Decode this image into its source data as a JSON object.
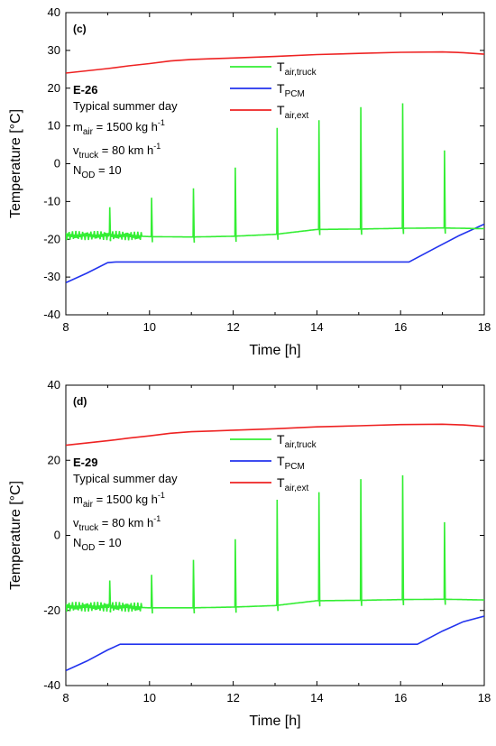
{
  "chart_data": [
    {
      "type": "line",
      "panel_label": "(c)",
      "case_id": "E-26",
      "info": {
        "day": "Typical summer day",
        "m_air_sym": "m",
        "m_air_sub": "air",
        "m_air_val": " = 1500 kg h",
        "m_air_exp": "-1",
        "v_truck_sym": "v",
        "v_truck_sub": "truck",
        "v_truck_val": " = 80 km h",
        "v_truck_exp": "-1",
        "n_od_sym": "N",
        "n_od_sub": "OD",
        "n_od_val": " = 10"
      },
      "xlabel": "Time [h]",
      "ylabel": "Temperature [°C]",
      "xlim": [
        8,
        18
      ],
      "ylim": [
        -40,
        40
      ],
      "xticks": [
        "8",
        "10",
        "12",
        "14",
        "16",
        "18"
      ],
      "yticks": [
        "-40",
        "-30",
        "-20",
        "-10",
        "0",
        "10",
        "20",
        "30",
        "40"
      ],
      "legend": [
        {
          "sym": "T",
          "sub": "air,truck",
          "color": "#33ee33"
        },
        {
          "sym": "T",
          "sub": "PCM",
          "color": "#2233ee"
        },
        {
          "sym": "T",
          "sub": "air,ext",
          "color": "#ee2222"
        }
      ],
      "series": [
        {
          "color": "#ee2222",
          "x": [
            8,
            8.5,
            9,
            9.5,
            10,
            10.5,
            11,
            11.5,
            12,
            13,
            14,
            15,
            16,
            17,
            17.5,
            18
          ],
          "y": [
            24,
            24.6,
            25.2,
            25.9,
            26.5,
            27.2,
            27.6,
            27.8,
            28,
            28.4,
            28.9,
            29.2,
            29.5,
            29.6,
            29.4,
            29
          ]
        },
        {
          "color": "#2233ee",
          "x": [
            8,
            8.5,
            9,
            9.2,
            16.2,
            16.8,
            17.4,
            18
          ],
          "y": [
            -31.5,
            -29,
            -26.2,
            -26,
            -26,
            -22.5,
            -19,
            -16
          ]
        },
        {
          "color": "#33ee33",
          "baseline_x": [
            8,
            9.3,
            10,
            11,
            12,
            13,
            14,
            15,
            16,
            17,
            18
          ],
          "baseline_y": [
            -19,
            -19,
            -19.3,
            -19.4,
            -19.2,
            -18.7,
            -17.4,
            -17.3,
            -17.1,
            -17,
            -17.2
          ],
          "noise_until": 9.8,
          "noise_amp": 1.2,
          "peaks_x": [
            9.05,
            10.05,
            11.05,
            12.05,
            13.05,
            14.05,
            15.05,
            16.05,
            17.05
          ],
          "peaks_y": [
            -11.5,
            -9,
            -6.5,
            -1,
            9.5,
            11.5,
            15,
            16,
            3.5
          ]
        }
      ]
    },
    {
      "type": "line",
      "panel_label": "(d)",
      "case_id": "E-29",
      "info": {
        "day": "Typical summer day",
        "m_air_sym": "m",
        "m_air_sub": "air",
        "m_air_val": " = 1500 kg h",
        "m_air_exp": "-1",
        "v_truck_sym": "v",
        "v_truck_sub": "truck",
        "v_truck_val": " = 80 km h",
        "v_truck_exp": "-1",
        "n_od_sym": "N",
        "n_od_sub": "OD",
        "n_od_val": " = 10"
      },
      "xlabel": "Time [h]",
      "ylabel": "Temperature [°C]",
      "xlim": [
        8,
        18
      ],
      "ylim": [
        -40,
        40
      ],
      "xticks": [
        "8",
        "10",
        "12",
        "14",
        "16",
        "18"
      ],
      "yticks": [
        "-40",
        "-20",
        "0",
        "20",
        "40"
      ],
      "legend": [
        {
          "sym": "T",
          "sub": "air,truck",
          "color": "#33ee33"
        },
        {
          "sym": "T",
          "sub": "PCM",
          "color": "#2233ee"
        },
        {
          "sym": "T",
          "sub": "air,ext",
          "color": "#ee2222"
        }
      ],
      "series": [
        {
          "color": "#ee2222",
          "x": [
            8,
            8.5,
            9,
            9.5,
            10,
            10.5,
            11,
            11.5,
            12,
            13,
            14,
            15,
            16,
            17,
            17.5,
            18
          ],
          "y": [
            24,
            24.6,
            25.2,
            25.9,
            26.5,
            27.2,
            27.6,
            27.8,
            28,
            28.4,
            28.9,
            29.2,
            29.5,
            29.6,
            29.4,
            29
          ]
        },
        {
          "color": "#2233ee",
          "x": [
            8,
            8.5,
            9,
            9.3,
            16.4,
            17,
            17.5,
            18
          ],
          "y": [
            -36,
            -33.5,
            -30.5,
            -29,
            -29,
            -25.5,
            -23,
            -21.5
          ]
        },
        {
          "color": "#33ee33",
          "baseline_x": [
            8,
            9.3,
            10,
            11,
            12,
            13,
            14,
            15,
            16,
            17,
            18
          ],
          "baseline_y": [
            -19,
            -19,
            -19.3,
            -19.3,
            -19.1,
            -18.7,
            -17.4,
            -17.3,
            -17.1,
            -17,
            -17.2
          ],
          "noise_until": 9.8,
          "noise_amp": 1.3,
          "peaks_x": [
            9.05,
            10.05,
            11.05,
            12.05,
            13.05,
            14.05,
            15.05,
            16.05,
            17.05
          ],
          "peaks_y": [
            -12,
            -10.5,
            -6.5,
            -1,
            9.5,
            11.5,
            15,
            16,
            3.5
          ]
        }
      ]
    }
  ]
}
